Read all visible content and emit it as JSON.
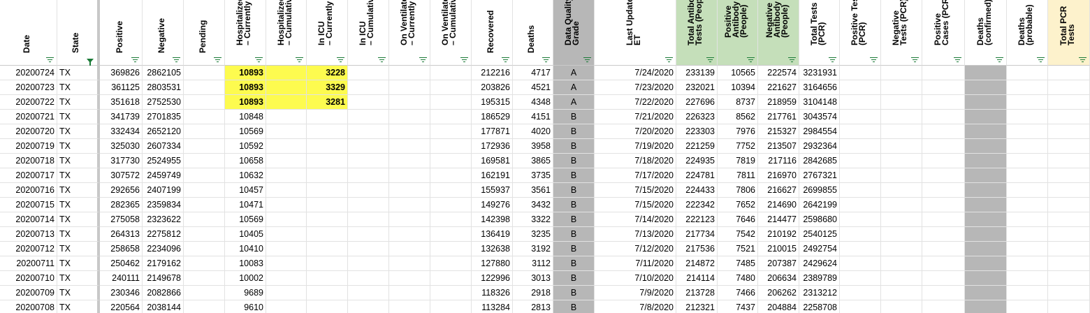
{
  "sheet": {
    "columns": [
      {
        "label": "Date",
        "align": "r",
        "filter": "lines"
      },
      {
        "label": "State",
        "align": "l",
        "filter": "funnel"
      },
      {
        "label": "Positive",
        "align": "r",
        "filter": "lines"
      },
      {
        "label": "Negative",
        "align": "r",
        "filter": "lines"
      },
      {
        "label": "Pending",
        "align": "r",
        "filter": "lines"
      },
      {
        "label": "Hospitalized\n– Currently",
        "align": "r",
        "filter": "lines"
      },
      {
        "label": "Hospitalized\n– Cumulative",
        "align": "r",
        "filter": "lines"
      },
      {
        "label": "In ICU\n– Currently",
        "align": "r",
        "filter": "lines"
      },
      {
        "label": "In ICU\n– Cumulative",
        "align": "r",
        "filter": "lines"
      },
      {
        "label": "On Ventilator\n– Currently",
        "align": "r",
        "filter": "lines"
      },
      {
        "label": "On Ventilator\n– Cumulative",
        "align": "r",
        "filter": "lines"
      },
      {
        "label": "Recovered",
        "align": "r",
        "filter": "lines"
      },
      {
        "label": "Deaths",
        "align": "r",
        "filter": "lines"
      },
      {
        "label": "Data Quality\nGrade",
        "align": "c",
        "filter": "lines"
      },
      {
        "label": "Last Update\nET",
        "align": "r",
        "filter": "lines"
      },
      {
        "label": "Total Antibody\nTests (People)",
        "align": "r",
        "filter": "lines"
      },
      {
        "label": "Positive\nAntibody Tests\n(People)",
        "align": "r",
        "filter": "lines"
      },
      {
        "label": "Negative\nAntibody Tests\n(People)",
        "align": "r",
        "filter": "lines"
      },
      {
        "label": "Total Tests\n(PCR)",
        "align": "r",
        "filter": "lines"
      },
      {
        "label": "Positive Tests\n(PCR)",
        "align": "r",
        "filter": "lines"
      },
      {
        "label": "Negative\nTests (PCR)",
        "align": "r",
        "filter": "lines"
      },
      {
        "label": "Positive\nCases (PCR)",
        "align": "r",
        "filter": "lines"
      },
      {
        "label": "Deaths\n(confirmed)",
        "align": "r",
        "filter": "lines"
      },
      {
        "label": "Deaths\n(probable)",
        "align": "r",
        "filter": "lines"
      },
      {
        "label": "Total PCR\nTests",
        "align": "r",
        "filter": "lines"
      }
    ],
    "rows": [
      [
        "20200724",
        "TX",
        "369826",
        "2862105",
        "",
        "10893",
        "",
        "3228",
        "",
        "",
        "",
        "212216",
        "4717",
        "A",
        "7/24/2020",
        "233139",
        "10565",
        "222574",
        "3231931",
        "",
        "",
        "",
        "",
        "",
        ""
      ],
      [
        "20200723",
        "TX",
        "361125",
        "2803531",
        "",
        "10893",
        "",
        "3329",
        "",
        "",
        "",
        "203826",
        "4521",
        "A",
        "7/23/2020",
        "232021",
        "10394",
        "221627",
        "3164656",
        "",
        "",
        "",
        "",
        "",
        ""
      ],
      [
        "20200722",
        "TX",
        "351618",
        "2752530",
        "",
        "10893",
        "",
        "3281",
        "",
        "",
        "",
        "195315",
        "4348",
        "A",
        "7/22/2020",
        "227696",
        "8737",
        "218959",
        "3104148",
        "",
        "",
        "",
        "",
        "",
        ""
      ],
      [
        "20200721",
        "TX",
        "341739",
        "2701835",
        "",
        "10848",
        "",
        "",
        "",
        "",
        "",
        "186529",
        "4151",
        "B",
        "7/21/2020",
        "226323",
        "8562",
        "217761",
        "3043574",
        "",
        "",
        "",
        "",
        "",
        ""
      ],
      [
        "20200720",
        "TX",
        "332434",
        "2652120",
        "",
        "10569",
        "",
        "",
        "",
        "",
        "",
        "177871",
        "4020",
        "B",
        "7/20/2020",
        "223303",
        "7976",
        "215327",
        "2984554",
        "",
        "",
        "",
        "",
        "",
        ""
      ],
      [
        "20200719",
        "TX",
        "325030",
        "2607334",
        "",
        "10592",
        "",
        "",
        "",
        "",
        "",
        "172936",
        "3958",
        "B",
        "7/19/2020",
        "221259",
        "7752",
        "213507",
        "2932364",
        "",
        "",
        "",
        "",
        "",
        ""
      ],
      [
        "20200718",
        "TX",
        "317730",
        "2524955",
        "",
        "10658",
        "",
        "",
        "",
        "",
        "",
        "169581",
        "3865",
        "B",
        "7/18/2020",
        "224935",
        "7819",
        "217116",
        "2842685",
        "",
        "",
        "",
        "",
        "",
        ""
      ],
      [
        "20200717",
        "TX",
        "307572",
        "2459749",
        "",
        "10632",
        "",
        "",
        "",
        "",
        "",
        "162191",
        "3735",
        "B",
        "7/17/2020",
        "224781",
        "7811",
        "216970",
        "2767321",
        "",
        "",
        "",
        "",
        "",
        ""
      ],
      [
        "20200716",
        "TX",
        "292656",
        "2407199",
        "",
        "10457",
        "",
        "",
        "",
        "",
        "",
        "155937",
        "3561",
        "B",
        "7/15/2020",
        "224433",
        "7806",
        "216627",
        "2699855",
        "",
        "",
        "",
        "",
        "",
        ""
      ],
      [
        "20200715",
        "TX",
        "282365",
        "2359834",
        "",
        "10471",
        "",
        "",
        "",
        "",
        "",
        "149276",
        "3432",
        "B",
        "7/15/2020",
        "222342",
        "7652",
        "214690",
        "2642199",
        "",
        "",
        "",
        "",
        "",
        ""
      ],
      [
        "20200714",
        "TX",
        "275058",
        "2323622",
        "",
        "10569",
        "",
        "",
        "",
        "",
        "",
        "142398",
        "3322",
        "B",
        "7/14/2020",
        "222123",
        "7646",
        "214477",
        "2598680",
        "",
        "",
        "",
        "",
        "",
        ""
      ],
      [
        "20200713",
        "TX",
        "264313",
        "2275812",
        "",
        "10405",
        "",
        "",
        "",
        "",
        "",
        "136419",
        "3235",
        "B",
        "7/13/2020",
        "217734",
        "7542",
        "210192",
        "2540125",
        "",
        "",
        "",
        "",
        "",
        ""
      ],
      [
        "20200712",
        "TX",
        "258658",
        "2234096",
        "",
        "10410",
        "",
        "",
        "",
        "",
        "",
        "132638",
        "3192",
        "B",
        "7/12/2020",
        "217536",
        "7521",
        "210015",
        "2492754",
        "",
        "",
        "",
        "",
        "",
        ""
      ],
      [
        "20200711",
        "TX",
        "250462",
        "2179162",
        "",
        "10083",
        "",
        "",
        "",
        "",
        "",
        "127880",
        "3112",
        "B",
        "7/11/2020",
        "214872",
        "7485",
        "207387",
        "2429624",
        "",
        "",
        "",
        "",
        "",
        ""
      ],
      [
        "20200710",
        "TX",
        "240111",
        "2149678",
        "",
        "10002",
        "",
        "",
        "",
        "",
        "",
        "122996",
        "3013",
        "B",
        "7/10/2020",
        "214114",
        "7480",
        "206634",
        "2389789",
        "",
        "",
        "",
        "",
        "",
        ""
      ],
      [
        "20200709",
        "TX",
        "230346",
        "2082866",
        "",
        "9689",
        "",
        "",
        "",
        "",
        "",
        "118326",
        "2918",
        "B",
        "7/9/2020",
        "213728",
        "7466",
        "206262",
        "2313212",
        "",
        "",
        "",
        "",
        "",
        ""
      ],
      [
        "20200708",
        "TX",
        "220564",
        "2038144",
        "",
        "9610",
        "",
        "",
        "",
        "",
        "",
        "113284",
        "2813",
        "B",
        "7/8/2020",
        "212321",
        "7437",
        "204884",
        "2258708",
        "",
        "",
        "",
        "",
        "",
        ""
      ]
    ],
    "highlighted_cells": {
      "rows": [
        0,
        1,
        2
      ],
      "columns": [
        5,
        6,
        7
      ],
      "color": "#fdfb4f"
    },
    "colors": {
      "grade_column": "#b7b7b7",
      "antibody_header": "#c5dfba",
      "total_pcr_header": "#fdf2cc",
      "deaths_confirmed_column": "#b7b7b7",
      "filter_icon": "#1a7a36"
    }
  }
}
